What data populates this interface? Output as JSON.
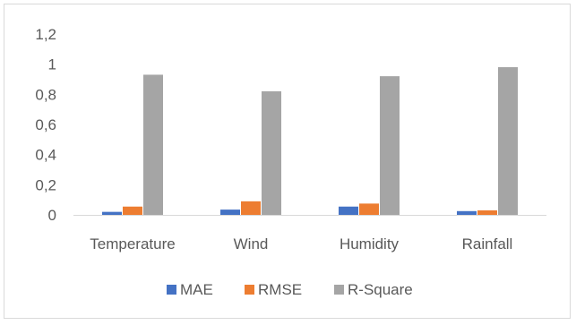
{
  "chart_data": {
    "type": "bar",
    "title": "",
    "xlabel": "",
    "ylabel": "",
    "categories": [
      "Temperature",
      "Wind",
      "Humidity",
      "Rainfall"
    ],
    "series": [
      {
        "name": "MAE",
        "color": "#4472c4",
        "values": [
          0.02,
          0.035,
          0.055,
          0.025
        ]
      },
      {
        "name": "RMSE",
        "color": "#ed7d31",
        "values": [
          0.055,
          0.09,
          0.075,
          0.03
        ]
      },
      {
        "name": "R-Square",
        "color": "#a5a5a5",
        "values": [
          0.93,
          0.82,
          0.92,
          0.98
        ]
      }
    ],
    "ylim": [
      0,
      1.2
    ],
    "yticks": [
      "0",
      "0,2",
      "0,4",
      "0,6",
      "0,8",
      "1",
      "1,2"
    ],
    "ytick_values": [
      0,
      0.2,
      0.4,
      0.6,
      0.8,
      1.0,
      1.2
    ],
    "grid": false,
    "legend": "bottom"
  }
}
